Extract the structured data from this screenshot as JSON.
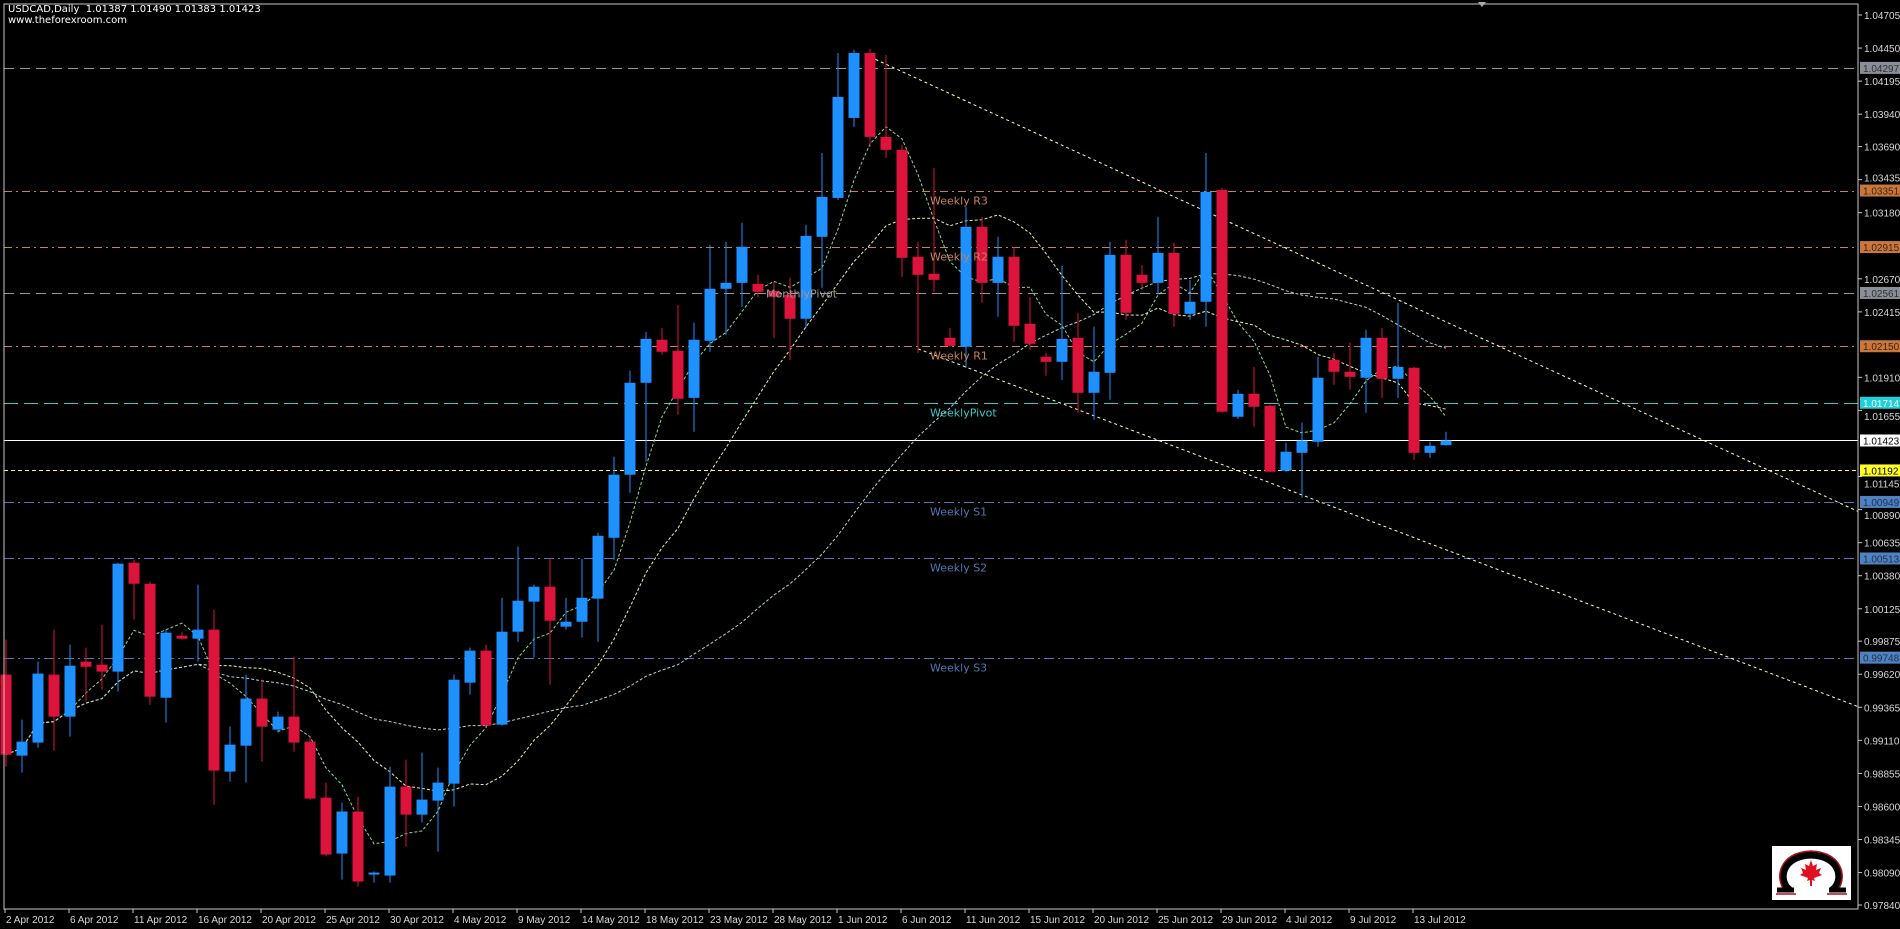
{
  "header": {
    "symbol": "USDCAD,Daily",
    "ohlc_readout": "1.01387 1.01490 1.01383 1.01423",
    "website": "www.theforexroom.com"
  },
  "colors": {
    "background": "#000000",
    "bull": "#1e90ff",
    "bear": "#dc143c",
    "weekly_resistance": "#c8825a",
    "weekly_pivot": "#3cc8c8",
    "weekly_support": "#4f78b4",
    "monthly": "#9a9a9a",
    "bid": "#ffffff",
    "yellow_level": "#ffff40",
    "trendline": "#ffffc0"
  },
  "logo": {
    "name": "theforexroom-omega-maple-leaf-logo",
    "text": ""
  },
  "chart_data": {
    "type": "candlestick",
    "title": "USDCAD,Daily",
    "ylim": [
      0.9784,
      1.04705
    ],
    "grid": false,
    "y_ticks": [
      "1.04705",
      "1.04450",
      "1.04195",
      "1.03940",
      "1.03690",
      "1.03435",
      "1.03180",
      "1.02670",
      "1.02415",
      "1.01910",
      "1.01655",
      "1.01145",
      "1.00890",
      "1.00635",
      "1.00380",
      "1.00125",
      "0.99875",
      "0.99620",
      "0.99365",
      "0.99110",
      "0.98855",
      "0.98600",
      "0.98345",
      "0.98090",
      "0.97840"
    ],
    "x_labels": [
      "2 Apr 2012",
      "6 Apr 2012",
      "11 Apr 2012",
      "16 Apr 2012",
      "20 Apr 2012",
      "25 Apr 2012",
      "30 Apr 2012",
      "4 May 2012",
      "9 May 2012",
      "14 May 2012",
      "18 May 2012",
      "23 May 2012",
      "28 May 2012",
      "1 Jun 2012",
      "6 Jun 2012",
      "11 Jun 2012",
      "15 Jun 2012",
      "20 Jun 2012",
      "25 Jun 2012",
      "29 Jun 2012",
      "4 Jul 2012",
      "9 Jul 2012",
      "13 Jul 2012"
    ],
    "x_label_every_bars": 4,
    "ohlc_columns": [
      "open",
      "high",
      "low",
      "close"
    ],
    "ohlc": [
      [
        0.99617,
        0.99887,
        0.98907,
        0.99
      ],
      [
        0.98992,
        0.9927,
        0.98861,
        0.991
      ],
      [
        0.99093,
        0.99717,
        0.99054,
        0.99625
      ],
      [
        0.99617,
        0.99964,
        0.99031,
        0.99293
      ],
      [
        0.99293,
        0.99848,
        0.99139,
        0.99686
      ],
      [
        0.99717,
        0.99825,
        0.99409,
        0.99678
      ],
      [
        0.99694,
        1.00002,
        0.99501,
        0.9964
      ],
      [
        0.9964,
        1.0048,
        0.99486,
        1.00473
      ],
      [
        1.0048,
        1.00503,
        1.00041,
        1.00318
      ],
      [
        1.00318,
        1.00334,
        0.99385,
        0.99447
      ],
      [
        0.99439,
        0.99964,
        0.99247,
        0.99941
      ],
      [
        0.99917,
        0.99948,
        0.99887,
        0.99894
      ],
      [
        0.99894,
        1.00311,
        0.99717,
        0.99964
      ],
      [
        0.99964,
        1.00118,
        0.98614,
        0.98877
      ],
      [
        0.98869,
        0.99216,
        0.98792,
        0.99077
      ],
      [
        0.99069,
        0.99617,
        0.98784,
        0.99432
      ],
      [
        0.99432,
        0.99578,
        0.98946,
        0.99216
      ],
      [
        0.99193,
        0.99332,
        0.9917,
        0.99293
      ],
      [
        0.99293,
        0.99756,
        0.99023,
        0.99093
      ],
      [
        0.991,
        0.99139,
        0.98653,
        0.98661
      ],
      [
        0.98668,
        0.98784,
        0.98214,
        0.98229
      ],
      [
        0.98237,
        0.9863,
        0.98036,
        0.98561
      ],
      [
        0.98561,
        0.98676,
        0.97982,
        0.98021
      ],
      [
        0.98075,
        0.98098,
        0.98013,
        0.9809
      ],
      [
        0.98067,
        0.98907,
        0.98013,
        0.98753
      ],
      [
        0.98753,
        0.98961,
        0.98291,
        0.98537
      ],
      [
        0.98537,
        0.99015,
        0.98476,
        0.98653
      ],
      [
        0.98645,
        0.989,
        0.98252,
        0.98784
      ],
      [
        0.98776,
        0.99617,
        0.98599,
        0.99578
      ],
      [
        0.99555,
        0.99825,
        0.99463,
        0.99802
      ],
      [
        0.99802,
        0.99848,
        0.99216,
        0.99224
      ],
      [
        0.99231,
        1.0021,
        0.99224,
        0.99948
      ],
      [
        0.99948,
        1.00604,
        0.99871,
        1.00187
      ],
      [
        1.0018,
        1.00311,
        0.99748,
        1.00295
      ],
      [
        1.00295,
        1.00519,
        0.9954,
        1.00033
      ],
      [
        0.99987,
        1.0021,
        0.99964,
        1.00025
      ],
      [
        1.00025,
        1.00511,
        0.99902,
        1.0021
      ],
      [
        1.00203,
        1.00712,
        0.99871,
        1.00688
      ],
      [
        1.00673,
        1.01298,
        1.00503,
        1.01159
      ],
      [
        1.01159,
        1.01961,
        1.0102,
        1.01868
      ],
      [
        1.01868,
        1.02261,
        1.01259,
        1.02207
      ],
      [
        1.022,
        1.02292,
        1.02084,
        1.02107
      ],
      [
        1.02115,
        1.02469,
        1.01621,
        1.01745
      ],
      [
        1.01752,
        1.02331,
        1.0149,
        1.022
      ],
      [
        1.02192,
        1.02932,
        1.02107,
        1.02593
      ],
      [
        1.02593,
        1.02955,
        1.02238,
        1.02639
      ],
      [
        1.02639,
        1.03102,
        1.02454,
        1.02917
      ],
      [
        1.02631,
        1.02701,
        1.02531,
        1.0257
      ],
      [
        1.02577,
        1.02647,
        1.02215,
        1.02531
      ],
      [
        1.02547,
        1.02678,
        1.02045,
        1.02362
      ],
      [
        1.02362,
        1.03086,
        1.02292,
        1.03001
      ],
      [
        1.02994,
        1.03641,
        1.02601,
        1.03302
      ],
      [
        1.03294,
        1.04412,
        1.03279,
        1.04073
      ],
      [
        1.03911,
        1.04436,
        1.03842,
        1.04412
      ],
      [
        1.04412,
        1.04443,
        1.03688,
        1.03765
      ],
      [
        1.03765,
        1.04397,
        1.03603,
        1.03665
      ],
      [
        1.03665,
        1.03703,
        1.02685,
        1.02832
      ],
      [
        1.0284,
        1.02955,
        1.02099,
        1.02701
      ],
      [
        1.02709,
        1.03526,
        1.0257,
        1.02662
      ],
      [
        1.02215,
        1.02292,
        1.02146,
        1.02153
      ],
      [
        1.02146,
        1.03225,
        1.01984,
        1.03071
      ],
      [
        1.03071,
        1.03148,
        1.02485,
        1.02639
      ],
      [
        1.02639,
        1.02994,
        1.02377,
        1.0284
      ],
      [
        1.0284,
        1.02917,
        1.02184,
        1.02308
      ],
      [
        1.02323,
        1.02531,
        1.02123,
        1.02169
      ],
      [
        1.02069,
        1.02099,
        1.01922,
        1.0203
      ],
      [
        1.0203,
        1.0277,
        1.01891,
        1.02207
      ],
      [
        1.02215,
        1.02408,
        1.01637,
        1.01791
      ],
      [
        1.01791,
        1.023,
        1.01583,
        1.01953
      ],
      [
        1.01945,
        1.02955,
        1.01737,
        1.02855
      ],
      [
        1.02855,
        1.02971,
        1.02354,
        1.02408
      ],
      [
        1.02701,
        1.02778,
        1.02585,
        1.02639
      ],
      [
        1.02639,
        1.03148,
        1.02547,
        1.0287
      ],
      [
        1.0287,
        1.02948,
        1.023,
        1.024
      ],
      [
        1.024,
        1.02662,
        1.02354,
        1.02493
      ],
      [
        1.02493,
        1.03641,
        1.023,
        1.03341
      ],
      [
        1.03356,
        1.03372,
        1.01637,
        1.01645
      ],
      [
        1.01606,
        1.01814,
        1.01591,
        1.01783
      ],
      [
        1.01783,
        1.01991,
        1.01529,
        1.01683
      ],
      [
        1.01691,
        1.01698,
        1.01182,
        1.01182
      ],
      [
        1.0119,
        1.01406,
        1.01182,
        1.01336
      ],
      [
        1.01328,
        1.0156,
        1.00981,
        1.01421
      ],
      [
        1.01413,
        1.02069,
        1.01375,
        1.01907
      ],
      [
        1.02045,
        1.02099,
        1.01853,
        1.01953
      ],
      [
        1.01953,
        1.02177,
        1.01814,
        1.01914
      ],
      [
        1.01907,
        1.02277,
        1.01637,
        1.02215
      ],
      [
        1.02215,
        1.02292,
        1.01752,
        1.01899
      ],
      [
        1.01899,
        1.02485,
        1.01752,
        1.01991
      ],
      [
        1.01984,
        1.01991,
        1.01274,
        1.01328
      ],
      [
        1.01328,
        1.01413,
        1.0129,
        1.01382
      ],
      [
        1.01387,
        1.0149,
        1.01383,
        1.01423
      ]
    ],
    "levels": [
      {
        "name": "",
        "price": "1.04297",
        "kind": "monthly"
      },
      {
        "name": "Weekly R3",
        "price": "1.03351",
        "kind": "weekly_resistance"
      },
      {
        "name": "Weekly R2",
        "price": "1.02915",
        "kind": "weekly_resistance"
      },
      {
        "name": "MonthlyPivot",
        "price": "1.02561",
        "kind": "monthly"
      },
      {
        "name": "Weekly R1",
        "price": "1.02150",
        "kind": "weekly_resistance"
      },
      {
        "name": "WeeklyPivot",
        "price": "1.01714",
        "kind": "weekly_pivot"
      },
      {
        "name": "",
        "price": "1.01423",
        "kind": "bid"
      },
      {
        "name": "",
        "price": "1.01192",
        "kind": "yellow_level"
      },
      {
        "name": "Weekly S1",
        "price": "1.00949",
        "kind": "weekly_support"
      },
      {
        "name": "Weekly S2",
        "price": "1.00513",
        "kind": "weekly_support"
      },
      {
        "name": "Weekly S3",
        "price": "0.99748",
        "kind": "weekly_support"
      }
    ],
    "trendlines": [
      {
        "from": {
          "bar": 54,
          "price": 1.04382
        },
        "to": {
          "bar": 90,
          "price": 1.02338
        }
      },
      {
        "from": {
          "bar": 57,
          "price": 1.0213
        },
        "to": {
          "bar": 90,
          "price": 1.0058
        }
      }
    ],
    "moving_averages": [
      {
        "color": "#8fd88f"
      },
      {
        "color": "#f0f0a0"
      },
      {
        "color": "#a8d8d8"
      }
    ]
  }
}
